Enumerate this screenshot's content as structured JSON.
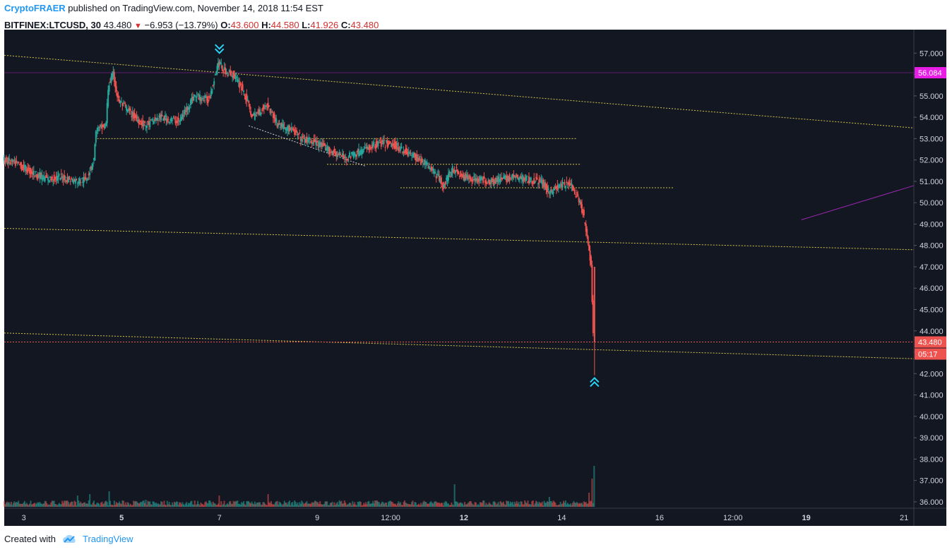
{
  "header": {
    "author": "CryptoFRAER",
    "published_text": "published on TradingView.com, November 14, 2018 11:54 EST",
    "symbol": "BITFINEX:LTCUSD, 30",
    "last": "43.480",
    "change": "−6.953 (−13.79%)",
    "o_label": "O:",
    "o": "43.600",
    "h_label": "H:",
    "h": "44.580",
    "l_label": "L:",
    "l": "41.926",
    "c_label": "C:",
    "c": "43.480"
  },
  "footer": {
    "created_with": "Created with",
    "brand": "TradingView"
  },
  "chart_data": {
    "type": "candlestick",
    "symbol": "BITFINEX:LTCUSD",
    "interval": "30",
    "ylim": [
      35.7,
      58.1
    ],
    "y_ticks": [
      "36.000",
      "37.000",
      "38.000",
      "39.000",
      "40.000",
      "41.000",
      "42.000",
      "43.000",
      "44.000",
      "45.000",
      "46.000",
      "47.000",
      "48.000",
      "49.000",
      "50.000",
      "51.000",
      "52.000",
      "53.000",
      "54.000",
      "55.000",
      "56.000",
      "57.000"
    ],
    "x_ticks": [
      {
        "label": "3",
        "bold": false,
        "day": 3.0
      },
      {
        "label": "5",
        "bold": true,
        "day": 5.0
      },
      {
        "label": "7",
        "bold": false,
        "day": 7.0
      },
      {
        "label": "9",
        "bold": false,
        "day": 9.0
      },
      {
        "label": "12:00",
        "bold": false,
        "day": 10.5
      },
      {
        "label": "12",
        "bold": true,
        "day": 12.0
      },
      {
        "label": "14",
        "bold": false,
        "day": 14.0
      },
      {
        "label": "16",
        "bold": false,
        "day": 16.0
      },
      {
        "label": "12:00",
        "bold": false,
        "day": 17.5
      },
      {
        "label": "19",
        "bold": true,
        "day": 19.0
      },
      {
        "label": "21",
        "bold": false,
        "day": 21.0
      }
    ],
    "xlim": [
      2.6,
      21.2
    ],
    "price_path": [
      [
        2.6,
        52.0
      ],
      [
        2.9,
        51.8
      ],
      [
        3.2,
        51.4
      ],
      [
        3.5,
        51.1
      ],
      [
        3.8,
        51.2
      ],
      [
        4.1,
        51.0
      ],
      [
        4.3,
        51.1
      ],
      [
        4.45,
        52.0
      ],
      [
        4.5,
        53.4
      ],
      [
        4.7,
        53.6
      ],
      [
        4.75,
        55.5
      ],
      [
        4.85,
        56.0
      ],
      [
        4.95,
        54.8
      ],
      [
        5.2,
        54.2
      ],
      [
        5.5,
        53.6
      ],
      [
        5.8,
        54.0
      ],
      [
        6.2,
        53.8
      ],
      [
        6.5,
        55.0
      ],
      [
        6.8,
        54.8
      ],
      [
        7.0,
        56.6
      ],
      [
        7.1,
        56.2
      ],
      [
        7.3,
        56.0
      ],
      [
        7.5,
        55.3
      ],
      [
        7.7,
        54.0
      ],
      [
        8.0,
        54.6
      ],
      [
        8.2,
        53.7
      ],
      [
        8.5,
        53.4
      ],
      [
        8.7,
        53.0
      ],
      [
        9.0,
        52.8
      ],
      [
        9.3,
        52.4
      ],
      [
        9.6,
        52.1
      ],
      [
        10.0,
        52.5
      ],
      [
        10.3,
        52.8
      ],
      [
        10.6,
        52.7
      ],
      [
        10.9,
        52.3
      ],
      [
        11.2,
        51.9
      ],
      [
        11.4,
        51.5
      ],
      [
        11.6,
        50.8
      ],
      [
        11.8,
        51.6
      ],
      [
        12.0,
        51.2
      ],
      [
        12.3,
        51.1
      ],
      [
        12.6,
        51.0
      ],
      [
        13.0,
        51.2
      ],
      [
        13.3,
        51.1
      ],
      [
        13.6,
        51.0
      ],
      [
        13.75,
        50.5
      ],
      [
        14.0,
        50.8
      ],
      [
        14.2,
        50.9
      ],
      [
        14.3,
        50.4
      ],
      [
        14.45,
        49.6
      ],
      [
        14.55,
        48.2
      ],
      [
        14.62,
        47.0
      ],
      [
        14.67,
        43.48
      ]
    ],
    "trend_lines": [
      {
        "name": "upper-channel-line",
        "color": "#d4c44a",
        "style": "dotted",
        "points": [
          [
            2.6,
            56.9
          ],
          [
            21.2,
            53.5
          ]
        ]
      },
      {
        "name": "middle-channel-line",
        "color": "#d4c44a",
        "style": "dotted",
        "points": [
          [
            2.6,
            48.8
          ],
          [
            21.2,
            47.8
          ]
        ]
      },
      {
        "name": "lower-channel-line",
        "color": "#d4c44a",
        "style": "dotted",
        "points": [
          [
            2.6,
            43.9
          ],
          [
            21.2,
            42.7
          ]
        ]
      },
      {
        "name": "support-line-53",
        "color": "#d4c44a",
        "style": "dotted",
        "points": [
          [
            4.5,
            53.0
          ],
          [
            14.3,
            53.0
          ]
        ]
      },
      {
        "name": "support-line-51-8",
        "color": "#d4c44a",
        "style": "dotted",
        "points": [
          [
            9.2,
            51.8
          ],
          [
            14.4,
            51.8
          ]
        ]
      },
      {
        "name": "support-line-50-7",
        "color": "#d4c44a",
        "style": "dotted",
        "points": [
          [
            10.7,
            50.7
          ],
          [
            16.3,
            50.7
          ]
        ]
      },
      {
        "name": "descending-white-line",
        "color": "#d1d4dc",
        "style": "dotted",
        "points": [
          [
            7.6,
            53.6
          ],
          [
            10.0,
            51.7
          ]
        ]
      },
      {
        "name": "purple-trend-line",
        "color": "#9c27b0",
        "style": "solid",
        "points": [
          [
            18.9,
            49.2
          ],
          [
            21.2,
            50.8
          ]
        ]
      }
    ],
    "horizontal_lines": [
      {
        "name": "magenta-level",
        "value": 56.084,
        "label": "56.084",
        "color": "#e91ee6"
      },
      {
        "name": "last-price-level",
        "value": 43.48,
        "label": "43.480",
        "color": "#ef5350",
        "countdown": "05:17"
      }
    ],
    "markers": [
      {
        "name": "sell-marker",
        "x": 7.0,
        "y": 57.3,
        "direction": "down",
        "color": "#29d3f5"
      },
      {
        "name": "buy-marker",
        "x": 14.67,
        "y": 41.5,
        "direction": "up",
        "color": "#29d3f5"
      }
    ],
    "volume_spikes": [
      {
        "x": 4.1,
        "v": 0.4
      },
      {
        "x": 4.35,
        "v": 0.45
      },
      {
        "x": 4.75,
        "v": 0.55
      },
      {
        "x": 5.5,
        "v": 0.25
      },
      {
        "x": 7.0,
        "v": 0.4
      },
      {
        "x": 8.0,
        "v": 0.45
      },
      {
        "x": 11.8,
        "v": 0.8
      },
      {
        "x": 13.75,
        "v": 0.35
      },
      {
        "x": 14.55,
        "v": 0.5
      },
      {
        "x": 14.62,
        "v": 1.0
      },
      {
        "x": 14.67,
        "v": 1.45
      }
    ],
    "colors": {
      "background": "#131722",
      "up": "#26a69a",
      "down": "#ef5350",
      "grid": "#1f2330",
      "axis_text": "#d1d4dc"
    }
  }
}
